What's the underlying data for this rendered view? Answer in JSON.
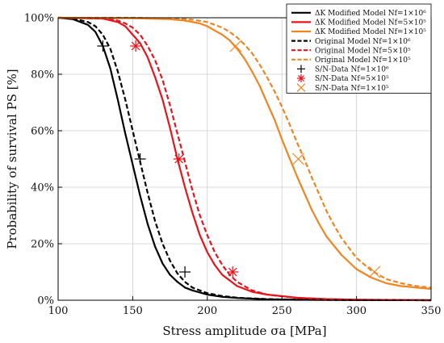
{
  "chart_data": {
    "type": "line",
    "title": "",
    "xlabel": "Stress amplitude σa [MPa]",
    "ylabel": "Probability of survival PS [%]",
    "xlim": [
      100,
      350
    ],
    "ylim": [
      0,
      100
    ],
    "xticks": [
      100,
      150,
      200,
      250,
      300,
      350
    ],
    "yticks": [
      0,
      20,
      40,
      60,
      80,
      100
    ],
    "y_tick_suffix": "%",
    "grid": true,
    "legend_position": "top-right",
    "series": [
      {
        "name": "ΔK Modified Model Nf=1×10⁶",
        "color": "#000000",
        "dash": "solid",
        "x": [
          100,
          110,
          120,
          125,
          130,
          135,
          140,
          145,
          150,
          155,
          160,
          165,
          170,
          175,
          180,
          185,
          190,
          200,
          210,
          220,
          240,
          260,
          300,
          350
        ],
        "y": [
          100,
          99.5,
          97.5,
          95,
          90,
          82,
          71,
          59,
          48,
          37,
          27,
          19,
          13,
          9,
          6.5,
          4.5,
          3.5,
          2,
          1.2,
          0.8,
          0.3,
          0.15,
          0.05,
          0
        ]
      },
      {
        "name": "ΔK Modified Model Nf=5×10⁵",
        "color": "#e8131b",
        "dash": "solid",
        "x": [
          100,
          130,
          140,
          145,
          150,
          155,
          160,
          165,
          170,
          175,
          180,
          185,
          190,
          195,
          200,
          205,
          210,
          220,
          230,
          240,
          260,
          280,
          300,
          350
        ],
        "y": [
          100,
          99.7,
          98.5,
          97,
          94,
          91,
          86,
          79,
          71,
          61,
          50,
          40,
          31,
          23,
          17,
          12.5,
          9,
          5,
          3,
          2,
          0.9,
          0.4,
          0.2,
          0
        ]
      },
      {
        "name": "ΔK Modified Model Nf=1×10⁵",
        "color": "#f08522",
        "dash": "solid",
        "x": [
          100,
          150,
          175,
          185,
          195,
          200,
          205,
          210,
          215,
          220,
          225,
          230,
          235,
          240,
          245,
          250,
          255,
          260,
          265,
          270,
          275,
          280,
          290,
          300,
          310,
          320,
          330,
          340,
          350
        ],
        "y": [
          100,
          99.8,
          99.5,
          99,
          98,
          97,
          95.5,
          94,
          92,
          89,
          85.5,
          81,
          76,
          70,
          64,
          57,
          50.5,
          44,
          38,
          32,
          27,
          22.5,
          16,
          11,
          8,
          6,
          5,
          4.5,
          4
        ]
      },
      {
        "name": "Original Model Nf=1×10⁶",
        "color": "#000000",
        "dash": "dashed",
        "x": [
          100,
          110,
          120,
          125,
          130,
          135,
          140,
          145,
          150,
          155,
          160,
          165,
          170,
          175,
          180,
          185,
          190,
          200,
          210,
          220,
          240,
          260,
          300,
          350
        ],
        "y": [
          100,
          99.7,
          98.5,
          97,
          94,
          89,
          81,
          71,
          60,
          49,
          38,
          28,
          20,
          14,
          9.5,
          6.5,
          4.5,
          2.5,
          1.5,
          0.9,
          0.4,
          0.2,
          0.05,
          0
        ]
      },
      {
        "name": "Original Model Nf=5×10⁵",
        "color": "#e8131b",
        "dash": "dashed",
        "x": [
          100,
          130,
          140,
          145,
          150,
          155,
          160,
          165,
          170,
          175,
          180,
          185,
          190,
          195,
          200,
          205,
          210,
          215,
          220,
          230,
          240,
          260,
          280,
          300,
          350
        ],
        "y": [
          100,
          99.8,
          99,
          98,
          96.5,
          94,
          90,
          85,
          78,
          69,
          59,
          49,
          39,
          30,
          23,
          17,
          12.5,
          9,
          6.5,
          3.5,
          2,
          0.8,
          0.4,
          0.2,
          0
        ]
      },
      {
        "name": "Original Model Nf=1×10⁵",
        "color": "#f08522",
        "dash": "dashed",
        "x": [
          100,
          150,
          180,
          190,
          200,
          205,
          210,
          215,
          220,
          225,
          230,
          235,
          240,
          245,
          250,
          255,
          260,
          265,
          270,
          275,
          280,
          285,
          290,
          300,
          310,
          320,
          330,
          340,
          350
        ],
        "y": [
          100,
          100,
          99.7,
          99.3,
          98.5,
          97.5,
          96.5,
          95,
          93,
          90.5,
          87.5,
          83.5,
          79,
          74,
          68.5,
          62.5,
          56,
          50,
          43.5,
          37.5,
          31.5,
          26.5,
          22,
          15,
          10.5,
          7.5,
          6,
          5,
          4.5
        ]
      }
    ],
    "markers": [
      {
        "name": "S/N-Data Nf=1×10⁶",
        "color": "#000000",
        "symbol": "plus",
        "x": [
          130,
          155,
          185
        ],
        "y": [
          90,
          50,
          10
        ]
      },
      {
        "name": "S/N-Data Nf=5×10⁵",
        "color": "#e8131b",
        "symbol": "asterisk",
        "x": [
          152,
          181,
          217
        ],
        "y": [
          90,
          50,
          10
        ]
      },
      {
        "name": "S/N-Data Nf=1×10⁵",
        "color": "#f08522",
        "symbol": "x",
        "x": [
          219,
          261,
          312
        ],
        "y": [
          90,
          50,
          10
        ]
      }
    ]
  }
}
